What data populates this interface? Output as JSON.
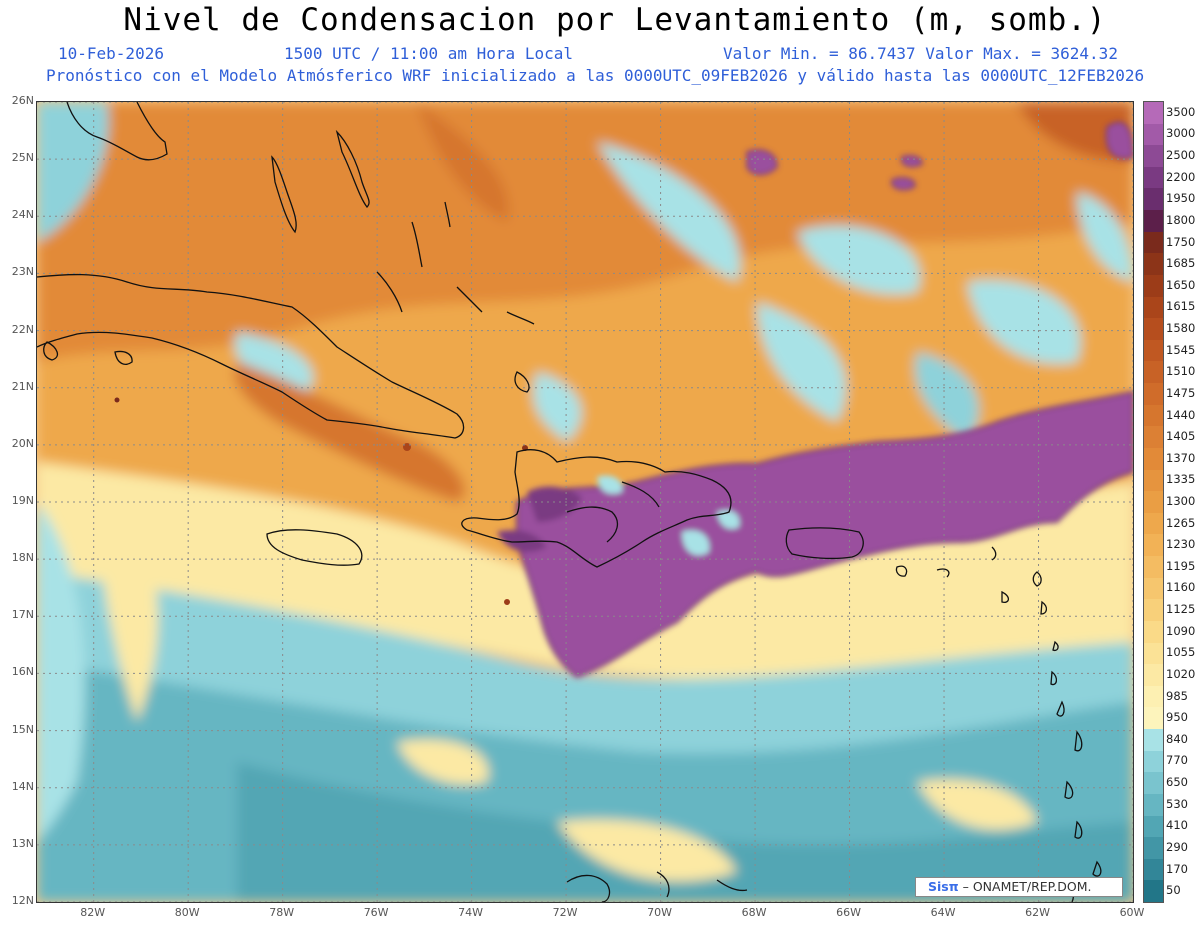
{
  "title": "Nivel de Condensacion por Levantamiento (m, somb.)",
  "date": "10-Feb-2026",
  "time": "1500 UTC / 11:00 am Hora Local",
  "minmax": "Valor Min. = 86.7437  Valor Max. = 3624.32",
  "subtitle": "Pronóstico con el Modelo Atmósferico WRF inicializado a las 0000UTC_09FEB2026 y válido hasta las  0000UTC_12FEB2026",
  "credit": {
    "logo": "Sisπ",
    "text": "– ONAMET/REP.DOM."
  },
  "axes": {
    "lat_labels": [
      "26N",
      "25N",
      "24N",
      "23N",
      "22N",
      "21N",
      "20N",
      "19N",
      "18N",
      "17N",
      "16N",
      "15N",
      "14N",
      "13N",
      "12N"
    ],
    "lon_labels": [
      "82W",
      "80W",
      "78W",
      "76W",
      "74W",
      "72W",
      "70W",
      "68W",
      "66W",
      "64W",
      "62W",
      "60W"
    ],
    "lat_values": [
      26,
      25,
      24,
      23,
      22,
      21,
      20,
      19,
      18,
      17,
      16,
      15,
      14,
      13,
      12
    ],
    "lon_values": [
      -82,
      -80,
      -78,
      -76,
      -74,
      -72,
      -70,
      -68,
      -66,
      -64,
      -62,
      -60
    ],
    "lon_range": [
      -83.2,
      -60.0
    ],
    "lat_range": [
      12.0,
      26.0
    ]
  },
  "colorbar": {
    "labels": [
      "3500",
      "3000",
      "2500",
      "2200",
      "1950",
      "1800",
      "1750",
      "1685",
      "1650",
      "1615",
      "1580",
      "1545",
      "1510",
      "1475",
      "1440",
      "1405",
      "1370",
      "1335",
      "1300",
      "1265",
      "1230",
      "1195",
      "1160",
      "1125",
      "1090",
      "1055",
      "1020",
      "985",
      "950",
      "840",
      "770",
      "650",
      "530",
      "410",
      "290",
      "170",
      "50"
    ],
    "colors": [
      "#b56ab8",
      "#a25aa8",
      "#8d4a95",
      "#7a3a82",
      "#6a2e6e",
      "#5c1f4a",
      "#7a2a1c",
      "#8c3418",
      "#9c3c18",
      "#aa451a",
      "#b64e1e",
      "#c05822",
      "#c86226",
      "#d06c2a",
      "#d6762e",
      "#dc8034",
      "#e28a38",
      "#e6943e",
      "#ea9e44",
      "#eea84c",
      "#f2b256",
      "#f4bc62",
      "#f6c66e",
      "#f8d07a",
      "#fada88",
      "#fbe296",
      "#fce9a4",
      "#fdf0b2",
      "#fdf4bc",
      "#a8e2e6",
      "#8ed2da",
      "#7ac4ce",
      "#66b6c2",
      "#52a6b4",
      "#4296a6",
      "#328698",
      "#227688"
    ]
  },
  "map": {
    "islands": [
      "Cuba",
      "Hispaniola",
      "Jamaica",
      "Puerto Rico",
      "Bahamas",
      "Florida"
    ],
    "colors": {
      "land_outline": "#111111",
      "grid": "#8a8a8a",
      "purple": "#9a4f9e",
      "purple_edge": "#6a2b70",
      "orange": "#ea9e44",
      "light_orange": "#f6c66e",
      "yellow": "#fce9a4",
      "cyan_light": "#a8e2e6",
      "cyan": "#7ac4ce",
      "teal": "#52a6b4"
    }
  }
}
